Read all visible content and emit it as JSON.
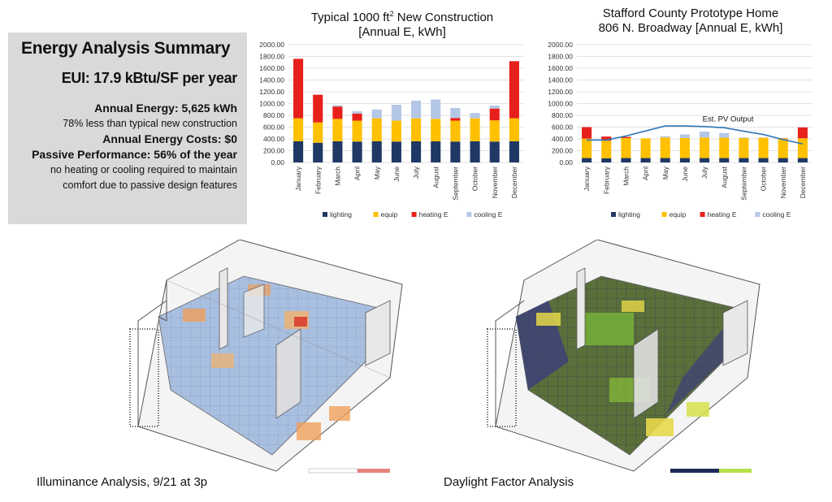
{
  "summary": {
    "title": "Energy Analysis Summary",
    "eui": "EUI: 17.9 kBtu/SF per year",
    "annual_energy": "Annual Energy: 5,625 kWh",
    "annual_energy_note": "78% less than typical new construction",
    "annual_costs": "Annual Energy Costs: $0",
    "passive": "Passive Performance: 56% of the year",
    "passive_note1": "no heating or cooling required to maintain",
    "passive_note2": "comfort due to passive design features"
  },
  "captions": {
    "illuminance": "Illuminance Analysis, 9/21 at 3p",
    "daylight": "Daylight Factor Analysis"
  },
  "colors": {
    "lighting": "#1f3864",
    "equip": "#ffc000",
    "heating": "#e8201c",
    "cooling": "#b4c7e7",
    "pv": "#2e75b6"
  },
  "chart_data": [
    {
      "type": "bar",
      "stacked": true,
      "title_line1": "Typical 1000 ft",
      "title_sup": "2",
      "title_line1_end": " New Construction",
      "title_line2": "[Annual E, kWh]",
      "categories": [
        "January",
        "February",
        "March",
        "April",
        "May",
        "June",
        "July",
        "August",
        "September",
        "October",
        "November",
        "December"
      ],
      "ylim": [
        0,
        2000
      ],
      "yticks": [
        "0.00",
        "200.00",
        "400.00",
        "600.00",
        "800.00",
        "1000.00",
        "1200.00",
        "1400.00",
        "1600.00",
        "1800.00",
        "2000.00"
      ],
      "series": [
        {
          "name": "lighting",
          "values": [
            360,
            335,
            360,
            355,
            360,
            355,
            360,
            360,
            355,
            360,
            355,
            360
          ]
        },
        {
          "name": "equip",
          "values": [
            390,
            345,
            380,
            355,
            390,
            355,
            390,
            380,
            355,
            390,
            360,
            390
          ]
        },
        {
          "name": "heating E",
          "values": [
            1010,
            470,
            210,
            120,
            0,
            0,
            0,
            0,
            45,
            0,
            200,
            970
          ]
        },
        {
          "name": "cooling E",
          "values": [
            0,
            0,
            20,
            40,
            150,
            270,
            300,
            330,
            170,
            90,
            50,
            0
          ]
        }
      ]
    },
    {
      "type": "bar",
      "stacked": true,
      "title_line1": "Stafford County Prototype Home",
      "title_line2": "806 N. Broadway [Annual E, kWh]",
      "categories": [
        "January",
        "February",
        "March",
        "April",
        "May",
        "June",
        "July",
        "August",
        "September",
        "October",
        "November",
        "December"
      ],
      "ylim": [
        0,
        2000
      ],
      "yticks": [
        "0.00",
        "200.00",
        "400.00",
        "600.00",
        "800.00",
        "1000.00",
        "1200.00",
        "1400.00",
        "1600.00",
        "1800.00",
        "2000.00"
      ],
      "series": [
        {
          "name": "lighting",
          "values": [
            75,
            70,
            75,
            75,
            75,
            75,
            75,
            75,
            75,
            75,
            75,
            75
          ]
        },
        {
          "name": "equip",
          "values": [
            330,
            300,
            340,
            335,
            350,
            340,
            350,
            345,
            340,
            345,
            330,
            335
          ]
        },
        {
          "name": "heating E",
          "values": [
            195,
            70,
            20,
            0,
            0,
            0,
            0,
            0,
            0,
            0,
            5,
            185
          ]
        },
        {
          "name": "cooling E",
          "values": [
            0,
            0,
            0,
            0,
            20,
            60,
            100,
            80,
            10,
            5,
            0,
            0
          ]
        }
      ],
      "line": {
        "name": "Est. PV Output",
        "values": [
          380,
          380,
          450,
          535,
          620,
          620,
          610,
          590,
          530,
          475,
          390,
          315
        ]
      },
      "annotation": "Est. PV Output"
    }
  ]
}
